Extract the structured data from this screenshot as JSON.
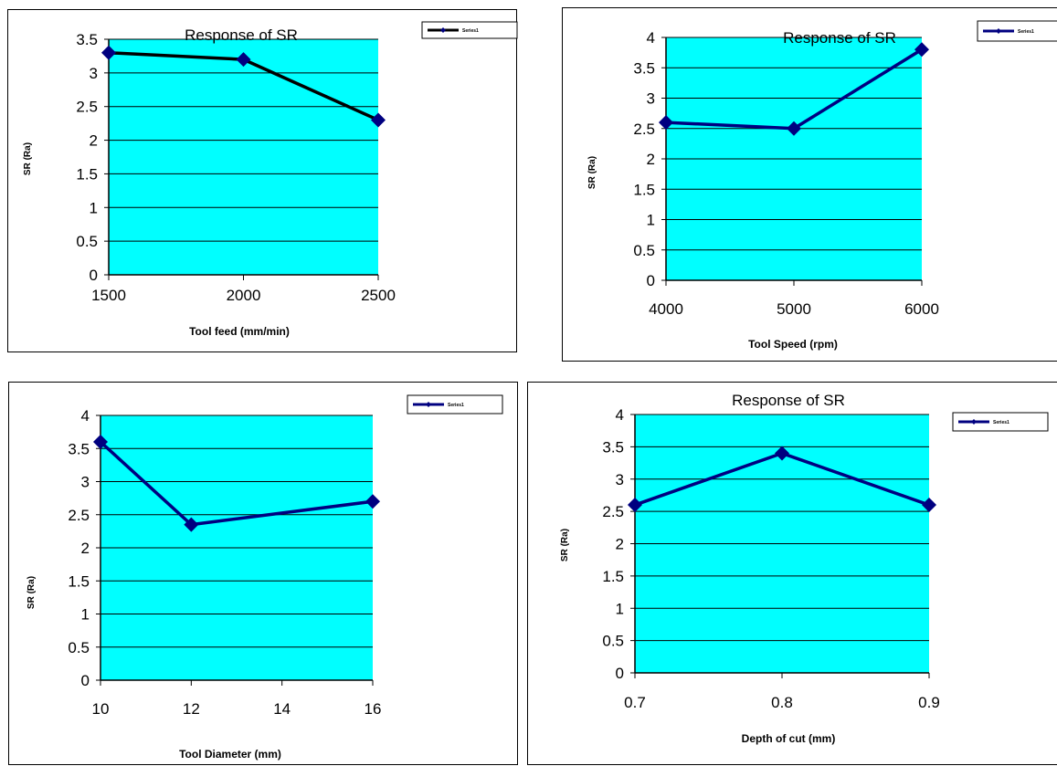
{
  "colors": {
    "plot_bg": "#00ffff",
    "series_line_0": "#000000",
    "series_line": "#000080",
    "marker": "#000080",
    "grid": "#000000"
  },
  "chart_data": [
    {
      "type": "line",
      "title": "Response of SR",
      "xlabel": "Tool feed (mm/min)",
      "ylabel": "SR (Ra)",
      "categories": [
        "1500",
        "2000",
        "2500"
      ],
      "series": [
        {
          "name": "Series1",
          "values": [
            3.3,
            3.2,
            2.3
          ]
        }
      ],
      "ylim": [
        0,
        3.5
      ],
      "yticks": [
        "0",
        "0.5",
        "1",
        "1.5",
        "2",
        "2.5",
        "3",
        "3.5"
      ],
      "grid": true,
      "legend": "top-right"
    },
    {
      "type": "line",
      "title": "Response  of SR",
      "xlabel": "Tool Speed (rpm)",
      "ylabel": "SR (Ra)",
      "categories": [
        "4000",
        "5000",
        "6000"
      ],
      "series": [
        {
          "name": "Series1",
          "values": [
            2.6,
            2.5,
            3.8
          ]
        }
      ],
      "ylim": [
        0,
        4
      ],
      "yticks": [
        "0",
        "0.5",
        "1",
        "1.5",
        "2",
        "2.5",
        "3",
        "3.5",
        "4"
      ],
      "grid": true,
      "legend": "top-right"
    },
    {
      "type": "line",
      "title": "",
      "xlabel": "Tool Diameter  (mm)",
      "ylabel": "SR (Ra)",
      "categories": [
        "10",
        "12",
        "14",
        "16"
      ],
      "x": [
        10,
        12,
        16
      ],
      "series": [
        {
          "name": "Series1",
          "values": [
            3.6,
            2.35,
            2.7
          ]
        }
      ],
      "ylim": [
        0,
        4
      ],
      "yticks": [
        "0",
        "0.5",
        "1",
        "1.5",
        "2",
        "2.5",
        "3",
        "3.5",
        "4"
      ],
      "grid": true,
      "legend": "top-right"
    },
    {
      "type": "line",
      "title": "Response  of SR",
      "xlabel": "Depth of cut (mm)",
      "ylabel": "SR (Ra)",
      "categories": [
        "0.7",
        "0.8",
        "0.9"
      ],
      "series": [
        {
          "name": "Series1",
          "values": [
            2.6,
            3.4,
            2.6
          ]
        }
      ],
      "ylim": [
        0,
        4
      ],
      "yticks": [
        "0",
        "0.5",
        "1",
        "1.5",
        "2",
        "2.5",
        "3",
        "3.5",
        "4"
      ],
      "grid": true,
      "legend": "top-right"
    }
  ]
}
